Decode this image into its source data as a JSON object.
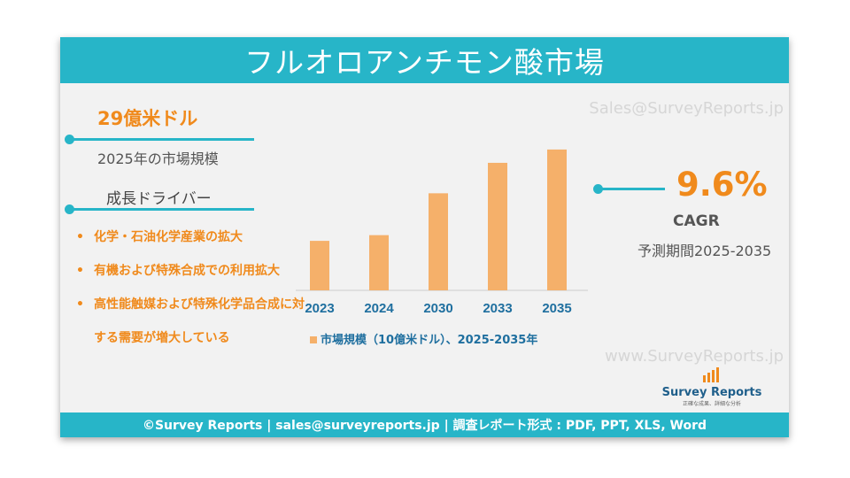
{
  "title": "フルオロアンチモン酸市場",
  "watermark_email": "Sales@SurveyReports.jp",
  "watermark_url": "www.SurveyReports.jp",
  "market_size": {
    "value": "29億米ドル",
    "label": "2025年の市場規模"
  },
  "drivers": {
    "heading": "成長ドライバー",
    "items": [
      "化学・石油化学産業の拡大",
      "有機および特殊合成での利用拡大",
      "高性能触媒および特殊化学品合成に対する需要が増大している"
    ]
  },
  "cagr": {
    "value": "9.6%",
    "label": "CAGR",
    "period": "予測期間2025-2035"
  },
  "logo": {
    "name": "Survey Reports",
    "tagline": "正確な成果、詳細な分析"
  },
  "footer": "©Survey Reports | sales@surveyreports.jp |  調査レポート形式 : PDF, PPT, XLS, Word",
  "colors": {
    "accent": "#27b5c8",
    "bar": "#f5b06a",
    "highlight": "#f08a1c"
  },
  "chart_data": {
    "type": "bar",
    "categories": [
      "2023",
      "2024",
      "2030",
      "2033",
      "2035"
    ],
    "values": [
      2.6,
      2.9,
      5.1,
      6.7,
      7.4
    ],
    "legend": "市場規模（10億米ドル）、2025-2035年",
    "legend_position": "bottom",
    "ylim": [
      0,
      8
    ],
    "grid": false
  }
}
